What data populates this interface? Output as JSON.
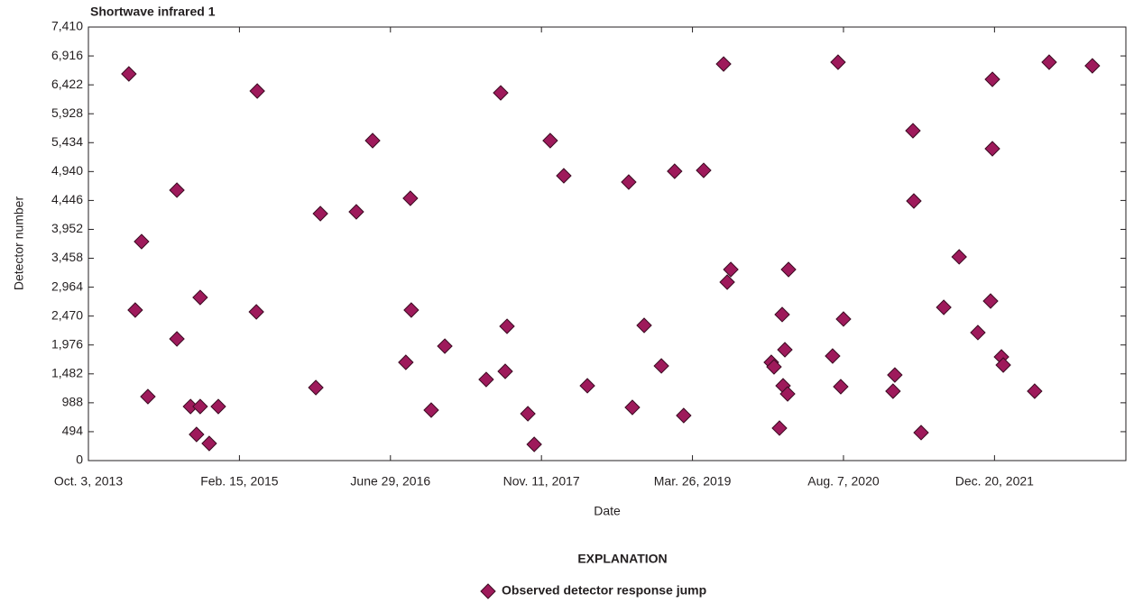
{
  "chart_data": {
    "type": "scatter",
    "title": "Shortwave infrared 1",
    "x_label": "Date",
    "y_label": "Detector number",
    "legend_title": "EXPLANATION",
    "xlim": [
      "2013-10-03",
      "2023-02-28"
    ],
    "xticks": [
      {
        "value": "2013-10-03",
        "label": "Oct. 3, 2013"
      },
      {
        "value": "2015-02-15",
        "label": "Feb. 15, 2015"
      },
      {
        "value": "2016-06-29",
        "label": "June 29, 2016"
      },
      {
        "value": "2017-11-11",
        "label": "Nov. 11, 2017"
      },
      {
        "value": "2019-03-26",
        "label": "Mar. 26, 2019"
      },
      {
        "value": "2020-08-07",
        "label": "Aug. 7, 2020"
      },
      {
        "value": "2021-12-20",
        "label": "Dec. 20, 2021"
      }
    ],
    "ylim": [
      0,
      7410
    ],
    "yticks": [
      0,
      494,
      988,
      {
        "value": 1482,
        "label": "1,482"
      },
      {
        "value": 1976,
        "label": "1,976"
      },
      {
        "value": 2470,
        "label": "2,470"
      },
      {
        "value": 2964,
        "label": "2,964"
      },
      {
        "value": 3458,
        "label": "3,458"
      },
      {
        "value": 3952,
        "label": "3,952"
      },
      {
        "value": 4446,
        "label": "4,446"
      },
      {
        "value": 4940,
        "label": "4,940"
      },
      {
        "value": 5434,
        "label": "5,434"
      },
      {
        "value": 5928,
        "label": "5,928"
      },
      {
        "value": 6422,
        "label": "6,422"
      },
      {
        "value": 6916,
        "label": "6,916"
      },
      {
        "value": 7410,
        "label": "7,410"
      }
    ],
    "grid": false,
    "legend": "bottom",
    "series": [
      {
        "name": "Observed detector response jump",
        "color": "#9e1a5b",
        "marker": "diamond",
        "x": [
          "2014-02-14",
          "2014-03-07",
          "2014-03-28",
          "2014-04-18",
          "2014-07-23",
          "2014-07-23",
          "2014-09-06",
          "2014-10-08",
          "2014-10-08",
          "2014-09-26",
          "2014-11-07",
          "2014-12-07",
          "2015-04-15",
          "2015-04-12",
          "2015-10-26",
          "2015-11-10",
          "2016-03-08",
          "2016-05-01",
          "2016-08-19",
          "2016-09-03",
          "2016-09-06",
          "2016-11-11",
          "2016-12-26",
          "2017-05-12",
          "2017-06-29",
          "2017-07-14",
          "2017-07-20",
          "2017-09-27",
          "2017-10-18",
          "2017-12-10",
          "2018-01-24",
          "2018-04-12",
          "2018-08-27",
          "2018-09-08",
          "2018-10-17",
          "2018-12-13",
          "2019-01-26",
          "2019-02-25",
          "2019-05-02",
          "2019-07-07",
          "2019-07-19",
          "2019-07-31",
          "2019-12-12",
          "2019-12-21",
          "2020-01-08",
          "2020-01-17",
          "2020-01-20",
          "2020-01-26",
          "2020-02-04",
          "2020-02-07",
          "2020-07-02",
          "2020-07-20",
          "2020-07-29",
          "2020-08-07",
          "2021-01-18",
          "2021-01-24",
          "2021-03-25",
          "2021-03-28",
          "2021-04-21",
          "2021-07-05",
          "2021-08-25",
          "2021-10-26",
          "2021-12-07",
          "2021-12-13",
          "2021-12-13",
          "2022-01-12",
          "2022-01-18",
          "2022-05-02",
          "2022-06-19",
          "2022-11-09"
        ],
        "values": [
          6609,
          2573,
          3743,
          1094,
          4622,
          2080,
          924,
          2788,
          924,
          447,
          293,
          924,
          6316,
          2542,
          1248,
          4221,
          4252,
          5469,
          1679,
          4483,
          2573,
          863,
          1956,
          1386,
          6285,
          1525,
          2295,
          801,
          277,
          5469,
          4868,
          1279,
          4760,
          909,
          2311,
          1618,
          4945,
          770,
          4960,
          6778,
          3050,
          3266,
          1679,
          1602,
          555,
          2496,
          1279,
          1895,
          1140,
          3266,
          1787,
          6809,
          1263,
          2419,
          1186,
          1463,
          5638,
          4437,
          478,
          2619,
          3482,
          2188,
          2727,
          6516,
          5330,
          1772,
          1633,
          1186,
          6809,
          6747
        ]
      }
    ]
  }
}
